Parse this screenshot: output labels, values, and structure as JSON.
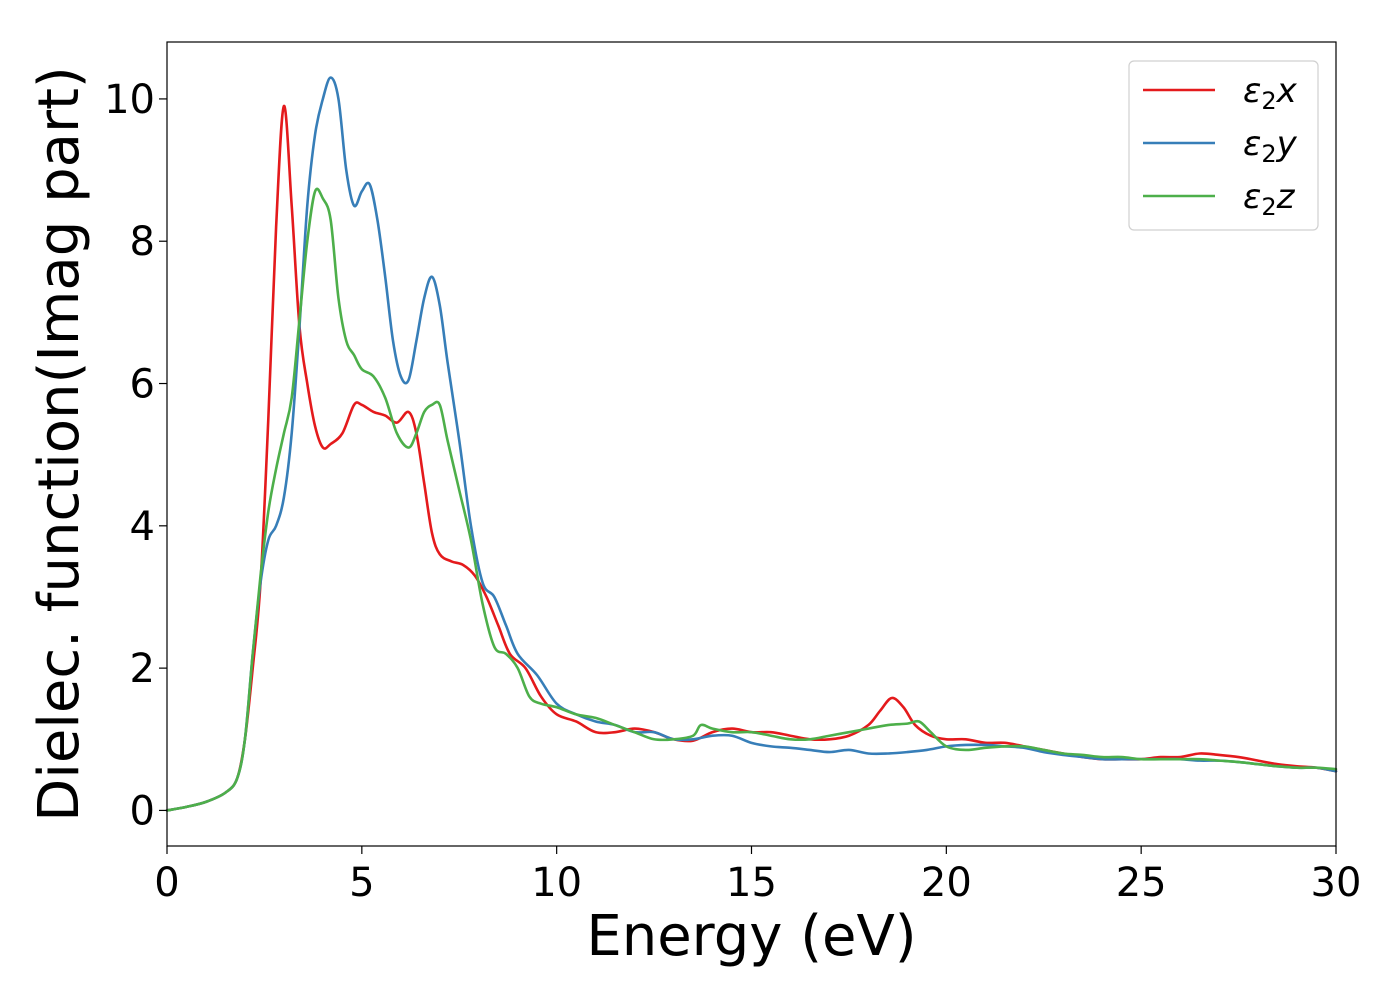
{
  "chart_data": {
    "type": "line",
    "xlabel": "Energy (eV)",
    "ylabel": "Dielec. function(Imag part)",
    "xlim": [
      0,
      30
    ],
    "ylim": [
      -0.5,
      10.8
    ],
    "x_ticks": [
      0,
      5,
      10,
      15,
      20,
      25,
      30
    ],
    "y_ticks": [
      0,
      2,
      4,
      6,
      8,
      10
    ],
    "grid": false,
    "legend_position": "top-right",
    "series": [
      {
        "name": "ε2x",
        "legend_symbol": "ε",
        "legend_sub": "2",
        "legend_var": "x",
        "color": "#e41a1c",
        "x": [
          0,
          0.5,
          1.0,
          1.5,
          1.8,
          2.0,
          2.2,
          2.4,
          2.6,
          2.8,
          3.0,
          3.2,
          3.4,
          3.6,
          3.8,
          4.0,
          4.2,
          4.5,
          4.8,
          5.0,
          5.3,
          5.6,
          5.9,
          6.2,
          6.4,
          6.6,
          6.8,
          7.0,
          7.3,
          7.6,
          7.9,
          8.2,
          8.5,
          8.8,
          9.2,
          9.6,
          10.0,
          10.5,
          11.0,
          11.5,
          12.0,
          12.5,
          13.0,
          13.5,
          14.0,
          14.5,
          15.0,
          15.5,
          16.0,
          16.5,
          17.0,
          17.5,
          18.0,
          18.3,
          18.6,
          18.9,
          19.2,
          19.6,
          20.0,
          20.5,
          21.0,
          21.5,
          22.0,
          22.5,
          23.0,
          23.5,
          24.0,
          24.5,
          25.0,
          25.5,
          26.0,
          26.5,
          27.0,
          27.5,
          28.0,
          28.5,
          29.0,
          29.5,
          30.0
        ],
        "y": [
          0.0,
          0.05,
          0.12,
          0.25,
          0.45,
          1.0,
          2.0,
          3.2,
          5.5,
          8.2,
          9.9,
          8.5,
          6.8,
          6.0,
          5.4,
          5.1,
          5.15,
          5.3,
          5.7,
          5.7,
          5.6,
          5.55,
          5.45,
          5.6,
          5.3,
          4.6,
          3.9,
          3.6,
          3.5,
          3.45,
          3.3,
          3.0,
          2.6,
          2.2,
          2.0,
          1.6,
          1.35,
          1.25,
          1.1,
          1.1,
          1.15,
          1.1,
          1.0,
          0.98,
          1.1,
          1.15,
          1.1,
          1.1,
          1.05,
          1.0,
          1.0,
          1.05,
          1.2,
          1.4,
          1.58,
          1.45,
          1.2,
          1.05,
          1.0,
          1.0,
          0.95,
          0.95,
          0.9,
          0.85,
          0.8,
          0.75,
          0.72,
          0.72,
          0.72,
          0.75,
          0.75,
          0.8,
          0.78,
          0.75,
          0.7,
          0.65,
          0.62,
          0.6,
          0.55
        ]
      },
      {
        "name": "ε2y",
        "legend_symbol": "ε",
        "legend_sub": "2",
        "legend_var": "y",
        "color": "#377eb8",
        "x": [
          0,
          0.5,
          1.0,
          1.5,
          1.8,
          2.0,
          2.2,
          2.4,
          2.6,
          2.8,
          3.0,
          3.2,
          3.4,
          3.6,
          3.8,
          4.0,
          4.2,
          4.4,
          4.6,
          4.8,
          5.0,
          5.2,
          5.4,
          5.6,
          5.8,
          6.0,
          6.2,
          6.4,
          6.6,
          6.8,
          7.0,
          7.2,
          7.5,
          7.8,
          8.1,
          8.4,
          8.7,
          9.0,
          9.5,
          10.0,
          10.5,
          11.0,
          11.5,
          12.0,
          12.5,
          13.0,
          13.5,
          14.0,
          14.5,
          15.0,
          15.5,
          16.0,
          16.5,
          17.0,
          17.5,
          18.0,
          18.5,
          19.0,
          19.5,
          20.0,
          20.5,
          21.0,
          21.5,
          22.0,
          22.5,
          23.0,
          23.5,
          24.0,
          24.5,
          25.0,
          25.5,
          26.0,
          26.5,
          27.0,
          27.5,
          28.0,
          28.5,
          29.0,
          29.5,
          30.0
        ],
        "y": [
          0.0,
          0.05,
          0.12,
          0.25,
          0.45,
          1.0,
          2.2,
          3.2,
          3.8,
          4.0,
          4.4,
          5.3,
          6.8,
          8.5,
          9.5,
          10.0,
          10.3,
          10.0,
          9.0,
          8.5,
          8.7,
          8.8,
          8.3,
          7.5,
          6.6,
          6.1,
          6.05,
          6.6,
          7.2,
          7.5,
          7.1,
          6.3,
          5.2,
          4.0,
          3.2,
          3.0,
          2.6,
          2.2,
          1.9,
          1.5,
          1.35,
          1.25,
          1.2,
          1.1,
          1.1,
          1.0,
          1.0,
          1.05,
          1.05,
          0.95,
          0.9,
          0.88,
          0.85,
          0.82,
          0.85,
          0.8,
          0.8,
          0.82,
          0.85,
          0.9,
          0.92,
          0.92,
          0.9,
          0.88,
          0.82,
          0.78,
          0.75,
          0.72,
          0.72,
          0.72,
          0.72,
          0.72,
          0.7,
          0.7,
          0.68,
          0.65,
          0.62,
          0.6,
          0.6,
          0.55
        ]
      },
      {
        "name": "ε2z",
        "legend_symbol": "ε",
        "legend_sub": "2",
        "legend_var": "z",
        "color": "#4daf4a",
        "x": [
          0,
          0.5,
          1.0,
          1.5,
          1.8,
          2.0,
          2.2,
          2.4,
          2.6,
          2.8,
          3.0,
          3.2,
          3.4,
          3.6,
          3.8,
          4.0,
          4.2,
          4.4,
          4.6,
          4.8,
          5.0,
          5.3,
          5.6,
          5.9,
          6.2,
          6.4,
          6.6,
          6.8,
          7.0,
          7.2,
          7.5,
          7.8,
          8.1,
          8.4,
          8.7,
          9.0,
          9.3,
          9.6,
          10.0,
          10.5,
          11.0,
          11.5,
          12.0,
          12.5,
          13.0,
          13.5,
          13.7,
          14.0,
          14.5,
          15.0,
          15.5,
          16.0,
          16.5,
          17.0,
          17.5,
          18.0,
          18.5,
          19.0,
          19.3,
          19.6,
          20.0,
          20.5,
          21.0,
          21.5,
          22.0,
          22.5,
          23.0,
          23.5,
          24.0,
          24.5,
          25.0,
          25.5,
          26.0,
          26.5,
          27.0,
          27.5,
          28.0,
          28.5,
          29.0,
          29.5,
          30.0
        ],
        "y": [
          0.0,
          0.05,
          0.12,
          0.25,
          0.45,
          1.0,
          2.2,
          3.3,
          4.2,
          4.8,
          5.3,
          5.8,
          6.9,
          8.0,
          8.7,
          8.6,
          8.3,
          7.2,
          6.6,
          6.4,
          6.2,
          6.1,
          5.8,
          5.3,
          5.1,
          5.3,
          5.6,
          5.7,
          5.7,
          5.2,
          4.5,
          3.8,
          2.9,
          2.3,
          2.2,
          2.0,
          1.6,
          1.5,
          1.45,
          1.35,
          1.3,
          1.2,
          1.1,
          1.0,
          1.0,
          1.05,
          1.2,
          1.15,
          1.1,
          1.1,
          1.05,
          1.0,
          1.0,
          1.05,
          1.1,
          1.15,
          1.2,
          1.22,
          1.25,
          1.1,
          0.9,
          0.85,
          0.88,
          0.9,
          0.9,
          0.85,
          0.8,
          0.78,
          0.75,
          0.75,
          0.72,
          0.72,
          0.72,
          0.72,
          0.7,
          0.68,
          0.65,
          0.62,
          0.6,
          0.6,
          0.58
        ]
      }
    ]
  }
}
